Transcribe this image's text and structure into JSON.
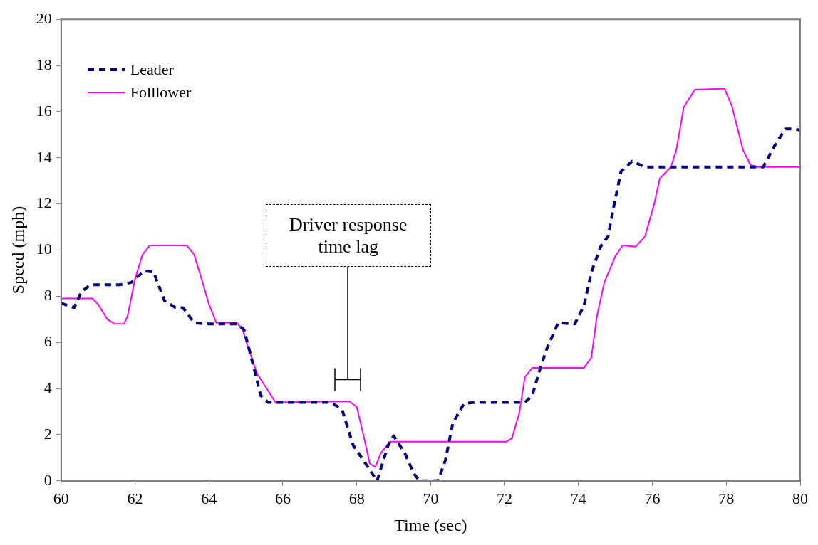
{
  "chart_data": {
    "type": "line",
    "xlabel": "Time (sec)",
    "ylabel": "Speed (mph)",
    "xlim": [
      60,
      80
    ],
    "xticks": [
      60,
      62,
      64,
      66,
      68,
      70,
      72,
      74,
      76,
      78,
      80
    ],
    "ylim": [
      0,
      20
    ],
    "yticks": [
      0,
      2,
      4,
      6,
      8,
      10,
      12,
      14,
      16,
      18,
      20
    ],
    "grid": false,
    "legend": "top left",
    "marker": "none",
    "annotations": [
      "Driver response\ntime lag"
    ],
    "series": [
      {
        "name": "Leader",
        "color": "#000080",
        "line_style": "dashed",
        "x": [
          60,
          60.35,
          60.55,
          60.8,
          61.6,
          61.9,
          62.25,
          62.5,
          62.8,
          63.1,
          63.3,
          63.6,
          63.9,
          64.75,
          64.95,
          65.2,
          65.4,
          65.6,
          67.3,
          67.6,
          67.9,
          68.3,
          68.55,
          68.85,
          69.0,
          69.3,
          69.55,
          69.7,
          70.2,
          70.4,
          70.6,
          70.9,
          71.2,
          72.55,
          72.75,
          72.95,
          73.15,
          73.45,
          73.9,
          74.15,
          74.35,
          74.6,
          74.8,
          74.95,
          75.15,
          75.45,
          75.8,
          78.65,
          79.0,
          79.3,
          79.6,
          79.8,
          80
        ],
        "values": [
          7.7,
          7.5,
          8.2,
          8.5,
          8.5,
          8.6,
          9.1,
          9.05,
          7.8,
          7.5,
          7.5,
          6.85,
          6.8,
          6.8,
          6.55,
          5.0,
          3.7,
          3.4,
          3.4,
          3.1,
          1.55,
          0.6,
          0,
          1.55,
          1.95,
          1.2,
          0.3,
          0,
          0,
          0.9,
          2.5,
          3.35,
          3.4,
          3.4,
          3.7,
          4.8,
          5.75,
          6.85,
          6.8,
          7.6,
          9.05,
          10.15,
          10.6,
          11.85,
          13.4,
          13.85,
          13.6,
          13.6,
          13.6,
          14.5,
          15.25,
          15.25,
          15.2
        ]
      },
      {
        "name": "Folllower",
        "color": "#ff00ff",
        "line_style": "solid",
        "x": [
          60,
          60.85,
          61,
          61.25,
          61.45,
          61.7,
          61.8,
          62.0,
          62.2,
          62.4,
          63.4,
          63.6,
          63.8,
          64.0,
          64.2,
          64.75,
          64.9,
          65.1,
          65.3,
          65.6,
          65.8,
          67.8,
          68.0,
          68.2,
          68.35,
          68.5,
          68.65,
          68.9,
          72.05,
          72.2,
          72.4,
          72.55,
          72.75,
          74.15,
          74.35,
          74.5,
          74.7,
          75.0,
          75.2,
          75.55,
          75.8,
          76.05,
          76.2,
          76.5,
          76.65,
          76.85,
          77.15,
          77.95,
          78.15,
          78.45,
          78.65,
          78.85,
          80
        ],
        "values": [
          7.9,
          7.9,
          7.65,
          7.0,
          6.8,
          6.8,
          7.15,
          8.75,
          9.8,
          10.2,
          10.2,
          9.8,
          8.75,
          7.65,
          6.85,
          6.85,
          6.6,
          5.6,
          4.65,
          3.9,
          3.4,
          3.45,
          3.2,
          1.85,
          0.75,
          0.6,
          1.2,
          1.7,
          1.7,
          1.85,
          2.95,
          4.5,
          4.9,
          4.9,
          5.35,
          7.15,
          8.6,
          9.75,
          10.2,
          10.15,
          10.6,
          12.0,
          13.1,
          13.6,
          14.35,
          16.2,
          16.95,
          17.0,
          16.25,
          14.35,
          13.7,
          13.6,
          13.6
        ]
      }
    ]
  }
}
